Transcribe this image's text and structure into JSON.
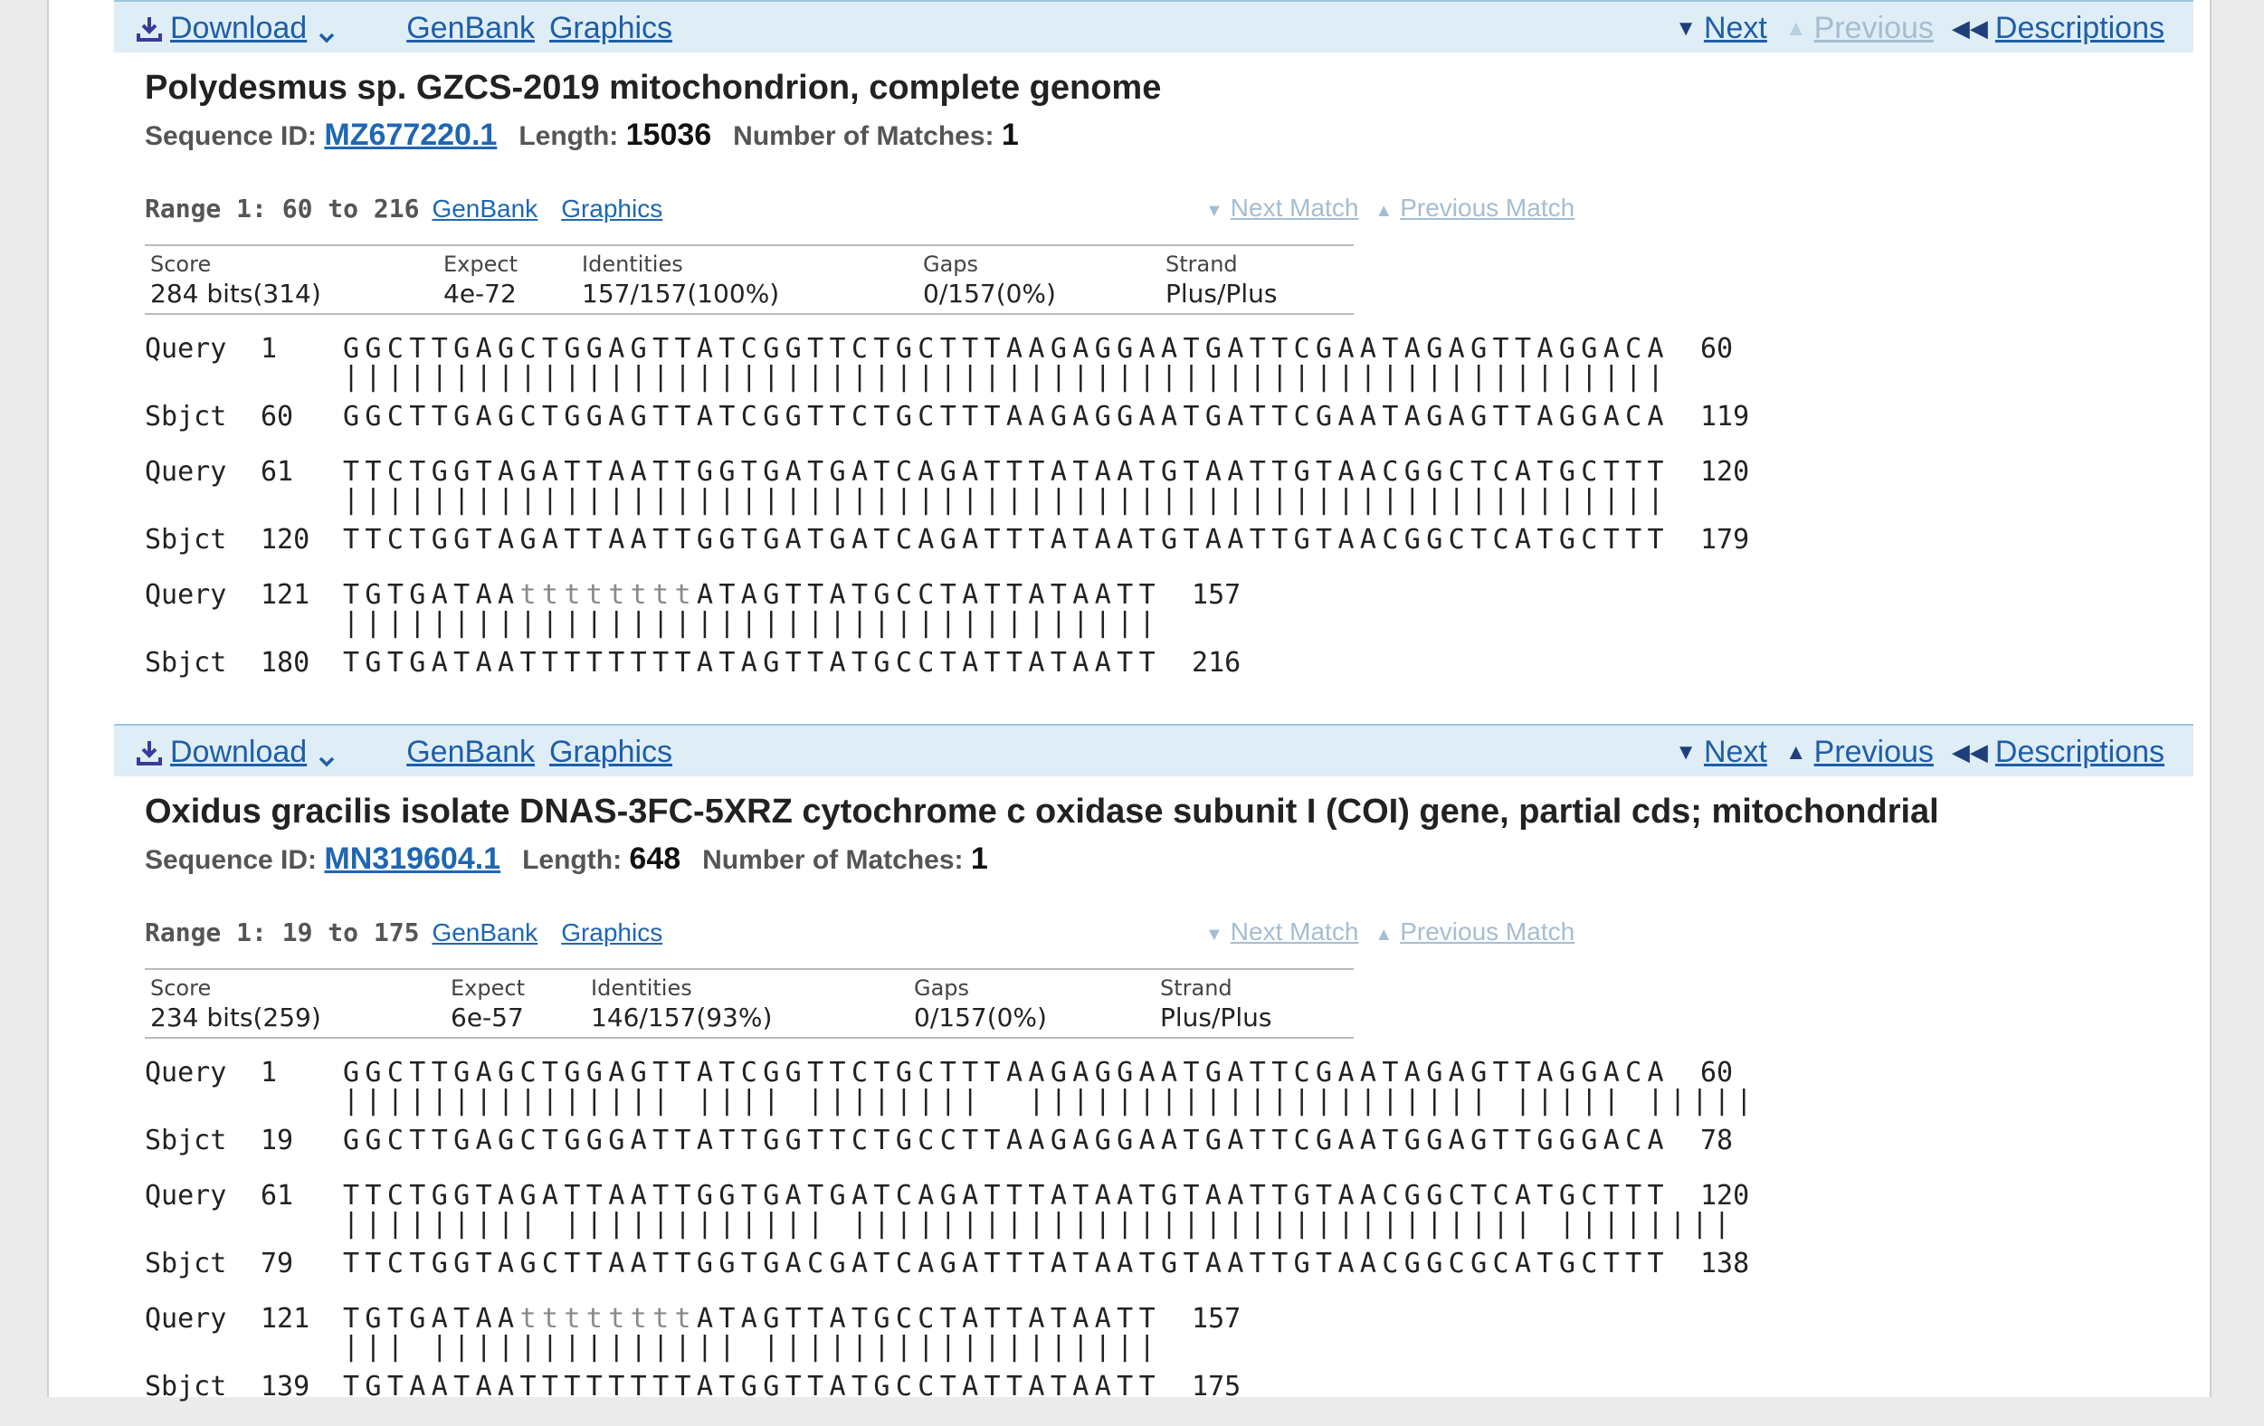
{
  "toolbar": {
    "download": "Download",
    "genbank": "GenBank",
    "graphics": "Graphics",
    "next": "Next",
    "previous": "Previous",
    "descriptions": "Descriptions"
  },
  "labels": {
    "sequence_id": "Sequence ID:",
    "length": "Length:",
    "matches": "Number of Matches:",
    "next_match": "Next Match",
    "previous_match": "Previous Match",
    "score": "Score",
    "expect": "Expect",
    "identities": "Identities",
    "gaps": "Gaps",
    "strand": "Strand",
    "query": "Query",
    "sbjct": "Sbjct"
  },
  "results": [
    {
      "title": "Polydesmus sp. GZCS-2019 mitochondrion, complete genome",
      "seq_id": "MZ677220.1",
      "length": "15036",
      "matches": "1",
      "previous_enabled": false,
      "range": "Range 1: 60 to 216",
      "stats": {
        "score": "284 bits(314)",
        "expect": "4e-72",
        "identities": "157/157(100%)",
        "gaps": "0/157(0%)",
        "strand": "Plus/Plus"
      },
      "alignment": [
        {
          "q_start": "1",
          "q_seq": "GGCTTGAGCTGGAGTTATCGGTTCTGCTTTAAGAGGAATGATTCGAATAGAGTTAGGACA",
          "q_end": "60",
          "mid": "||||||||||||||||||||||||||||||||||||||||||||||||||||||||||||",
          "s_start": "60",
          "s_seq": "GGCTTGAGCTGGAGTTATCGGTTCTGCTTTAAGAGGAATGATTCGAATAGAGTTAGGACA",
          "s_end": "119"
        },
        {
          "q_start": "61",
          "q_seq": "TTCTGGTAGATTAATTGGTGATGATCAGATTTATAATGTAATTGTAACGGCTCATGCTTT",
          "q_end": "120",
          "mid": "||||||||||||||||||||||||||||||||||||||||||||||||||||||||||||",
          "s_start": "120",
          "s_seq": "TTCTGGTAGATTAATTGGTGATGATCAGATTTATAATGTAATTGTAACGGCTCATGCTTT",
          "s_end": "179"
        },
        {
          "q_start": "121",
          "q_seq_a": "TGTGATAA",
          "q_seq_low": "tttttttt",
          "q_seq_b": "ATAGTTATGCCTATTATAATT",
          "q_end": "157",
          "mid": "|||||||||||||||||||||||||||||||||||||",
          "s_start": "180",
          "s_seq": "TGTGATAATTTTTTTTATAGTTATGCCTATTATAATT",
          "s_end": "216"
        }
      ]
    },
    {
      "title": "Oxidus gracilis isolate DNAS-3FC-5XRZ cytochrome c oxidase subunit I (COI) gene, partial cds; mitochondrial",
      "seq_id": "MN319604.1",
      "length": "648",
      "matches": "1",
      "previous_enabled": true,
      "range": "Range 1: 19 to 175",
      "stats": {
        "score": "234 bits(259)",
        "expect": "6e-57",
        "identities": "146/157(93%)",
        "gaps": "0/157(0%)",
        "strand": "Plus/Plus"
      },
      "alignment": [
        {
          "q_start": "1",
          "q_seq": "GGCTTGAGCTGGAGTTATCGGTTCTGCTTTAAGAGGAATGATTCGAATAGAGTTAGGACA",
          "q_end": "60",
          "mid": "||||||||||||||| |||| ||||||||  ||||||||||||||||||||| ||||| |||||",
          "s_start": "19",
          "s_seq": "GGCTTGAGCTGGGATTATTGGTTCTGCCTTAAGAGGAATGATTCGAATGGAGTTGGGACA",
          "s_end": "78"
        },
        {
          "q_start": "61",
          "q_seq": "TTCTGGTAGATTAATTGGTGATGATCAGATTTATAATGTAATTGTAACGGCTCATGCTTT",
          "q_end": "120",
          "mid": "||||||||| |||||||||||| ||||||||||||||||||||||||||||||| ||||||||",
          "s_start": "79",
          "s_seq": "TTCTGGTAGCTTAATTGGTGACGATCAGATTTATAATGTAATTGTAACGGCGCATGCTTT",
          "s_end": "138"
        },
        {
          "q_start": "121",
          "q_seq_a": "TGTGATAA",
          "q_seq_low": "tttttttt",
          "q_seq_b": "ATAGTTATGCCTATTATAATT",
          "q_end": "157",
          "mid": "||| |||||||||||||| ||||||||||||||||||",
          "s_start": "139",
          "s_seq": "TGTAATAATTTTTTTTATGGTTATGCCTATTATAATT",
          "s_end": "175"
        }
      ]
    }
  ]
}
